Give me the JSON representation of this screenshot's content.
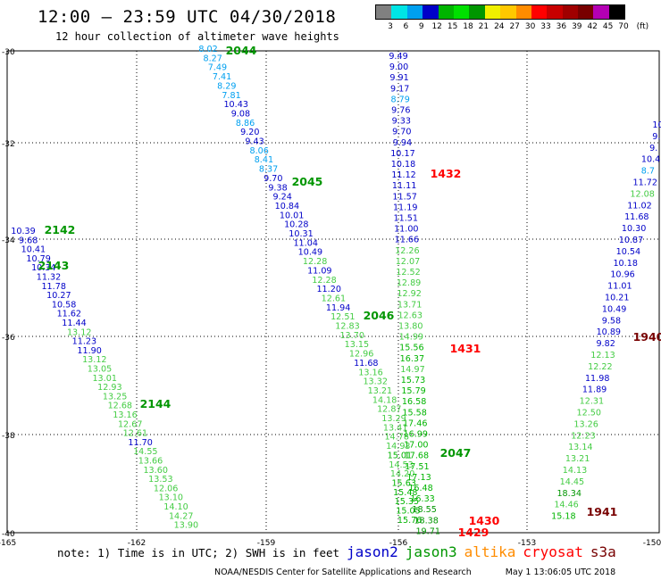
{
  "title": "12:00 – 23:59 UTC 04/30/2018",
  "subtitle": "12 hour collection of altimeter wave heights",
  "legend": {
    "colors": [
      "#808080",
      "#00e5e5",
      "#00a0f0",
      "#0000c8",
      "#00b400",
      "#00e000",
      "#009600",
      "#f0f000",
      "#ffc800",
      "#ff8c00",
      "#ff0000",
      "#c80000",
      "#a00000",
      "#780000",
      "#b400b4",
      "#000000"
    ],
    "labels": [
      "3",
      "6",
      "9",
      "12",
      "15",
      "18",
      "21",
      "24",
      "27",
      "30",
      "33",
      "36",
      "39",
      "42",
      "45",
      "70",
      "(ft)"
    ]
  },
  "axes": {
    "lat_labels": [
      "-30",
      "-32",
      "-34",
      "-36",
      "-38",
      "-40"
    ],
    "lon_labels": [
      "-165",
      "-162",
      "-159",
      "-156",
      "-153",
      "-150"
    ]
  },
  "satellite_colors": {
    "jason2": "#0000c8",
    "jason3": "#009600",
    "altika": "#ff8c00",
    "cryosat": "#ff0000",
    "s3a": "#780000"
  },
  "pass_labels": [
    {
      "text": "2044",
      "sat": "jason3"
    },
    {
      "text": "2045",
      "sat": "jason3"
    },
    {
      "text": "2046",
      "sat": "jason3"
    },
    {
      "text": "2047",
      "sat": "jason3"
    },
    {
      "text": "2142",
      "sat": "jason3"
    },
    {
      "text": "2143",
      "sat": "jason3"
    },
    {
      "text": "2144",
      "sat": "jason3"
    },
    {
      "text": "1432",
      "sat": "cryosat"
    },
    {
      "text": "1431",
      "sat": "cryosat"
    },
    {
      "text": "1430",
      "sat": "cryosat"
    },
    {
      "text": "1429",
      "sat": "cryosat"
    },
    {
      "text": "1940",
      "sat": "s3a"
    },
    {
      "text": "1941",
      "sat": "s3a"
    }
  ],
  "tracks": [
    {
      "name": "track-2044",
      "values": [
        "8.02",
        "8.27",
        "7.49",
        "7.41",
        "8.29",
        "7.81",
        "10.43",
        "9.08",
        "8.86",
        "9.20",
        "9.43",
        "8.06",
        "8.41",
        "8.37",
        "9.70",
        "9.38",
        "9.24",
        "10.84",
        "10.01",
        "10.28",
        "10.31",
        "11.04",
        "10.49",
        "12.28",
        "11.09",
        "12.28",
        "11.20",
        "12.61",
        "11.94",
        "12.51",
        "12.83",
        "13.70",
        "13.15",
        "12.96",
        "11.68",
        "13.16",
        "13.32",
        "13.21",
        "14.18",
        "12.87",
        "13.29",
        "13.41",
        "14.78",
        "14.93",
        "15.01",
        "14.53",
        "14.20",
        "15.63",
        "15.48",
        "15.35",
        "15.05",
        "15.76"
      ]
    },
    {
      "name": "track-1432",
      "values": [
        "9.49",
        "9.00",
        "9.91",
        "9.17",
        "8.79",
        "9.76",
        "9.33",
        "9.70",
        "9.94",
        "10.17",
        "10.18",
        "11.12",
        "11.11",
        "11.57",
        "11.19",
        "11.51",
        "11.00",
        "11.66",
        "12.26",
        "12.07",
        "12.52",
        "12.89",
        "12.92",
        "13.71",
        "12.63",
        "13.80",
        "14.99",
        "15.56",
        "16.37",
        "14.97",
        "15.73",
        "15.79",
        "16.58",
        "15.58",
        "17.46",
        "16.99",
        "17.00",
        "17.68",
        "17.51",
        "17.13",
        "16.48",
        "16.33",
        "18.55",
        "18.38",
        "19.71"
      ]
    },
    {
      "name": "track-2142",
      "values": [
        "10.39",
        "9.68",
        "10.41",
        "10.79",
        "10.34",
        "11.32",
        "11.78",
        "10.27",
        "10.58",
        "11.62",
        "11.44",
        "13.12",
        "11.23",
        "11.90",
        "13.12",
        "13.05",
        "13.01",
        "12.93",
        "13.25",
        "12.68",
        "13.16",
        "12.67",
        "12.61",
        "11.70",
        "14.55",
        "13.66",
        "13.60",
        "13.53",
        "12.06",
        "13.10",
        "14.10",
        "14.27",
        "13.90"
      ]
    },
    {
      "name": "track-1940",
      "values": [
        "10.",
        "9.",
        "9.",
        "10.4",
        "8.7",
        "11.72",
        "12.08",
        "11.02",
        "11.68",
        "10.30",
        "10.87",
        "10.54",
        "10.18",
        "10.96",
        "11.01",
        "10.21",
        "10.49",
        "9.58",
        "10.89",
        "9.82",
        "12.13",
        "12.22",
        "11.98",
        "11.89",
        "12.31",
        "12.50",
        "13.26",
        "12.23",
        "13.14",
        "13.21",
        "14.13",
        "14.45",
        "18.34",
        "14.46",
        "15.18"
      ]
    }
  ],
  "footer": {
    "note": "note: 1) Time is in UTC; 2) SWH is in feet",
    "satellites": [
      "jason2",
      "jason3",
      "altika",
      "cryosat",
      "s3a"
    ],
    "credit": "NOAA/NESDIS Center for Satellite Applications and Research",
    "timestamp": "May  1 13:06:05 UTC 2018"
  }
}
